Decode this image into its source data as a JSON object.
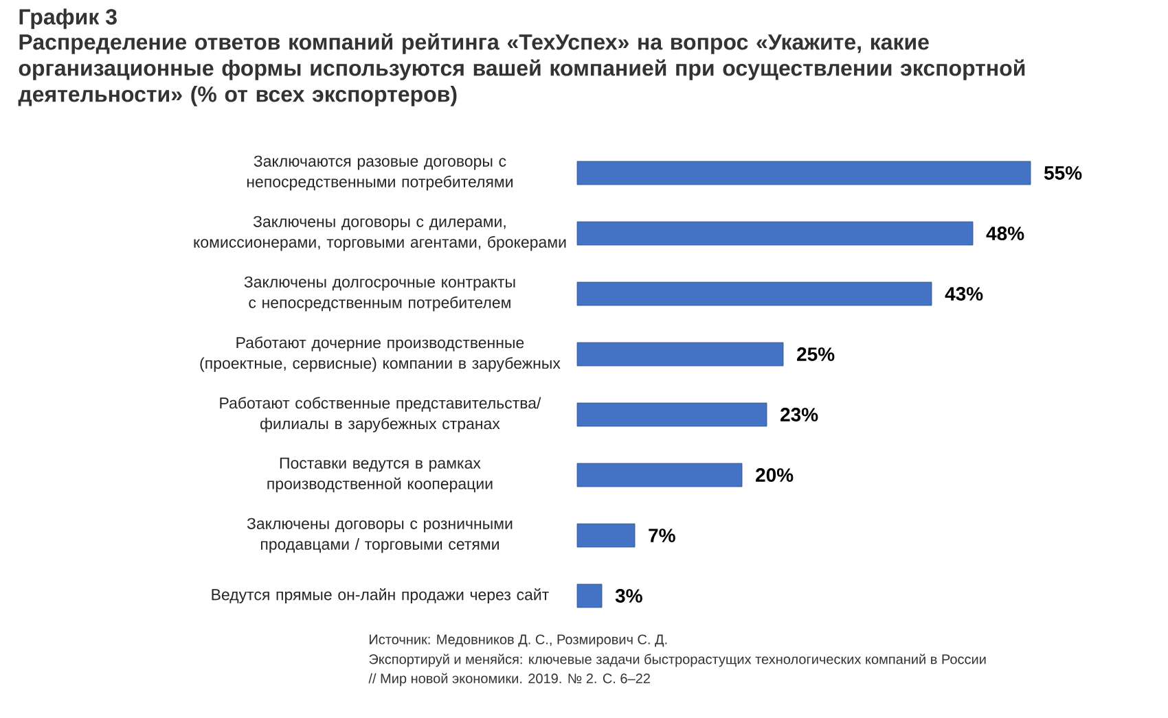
{
  "chart_data": {
    "type": "bar",
    "orientation": "horizontal",
    "title": "График 3",
    "subtitle": "Распределение ответов компаний рейтинга «ТехУспех» на вопрос «Укажите, какие организационные формы используются вашей компанией при осуществлении экспортной деятельности» (% от всех экспортеров)",
    "categories": [
      "Заключаются разовые договоры с непосредственными потребителями",
      "Заключены договоры с дилерами, комиссионерами, торговыми агентами, брокерами",
      "Заключены долгосрочные контракты с непосредственным потребителем",
      "Работают дочерние производственные (проектные, сервисные) компании в зарубежных",
      "Работают собственные представительства/ филиалы в зарубежных странах",
      "Поставки ведутся в рамках производственной кооперации",
      "Заключены договоры с розничными продавцами / торговыми сетями",
      "Ведутся прямые он-лайн продажи через сайт"
    ],
    "values": [
      55,
      48,
      43,
      25,
      23,
      20,
      7,
      3
    ],
    "value_labels": [
      "55%",
      "48%",
      "43%",
      "25%",
      "23%",
      "20%",
      "7%",
      "3%"
    ],
    "color": "#4472c4",
    "annotations": [
      "Источник: Медовников Д. С., Розмирович С. Д.",
      "Экспортируй и меняйся: ключевые задачи быстрорастущих технологических компаний в России",
      "// Мир новой экономики. 2019. № 2. С. 6–22"
    ]
  }
}
